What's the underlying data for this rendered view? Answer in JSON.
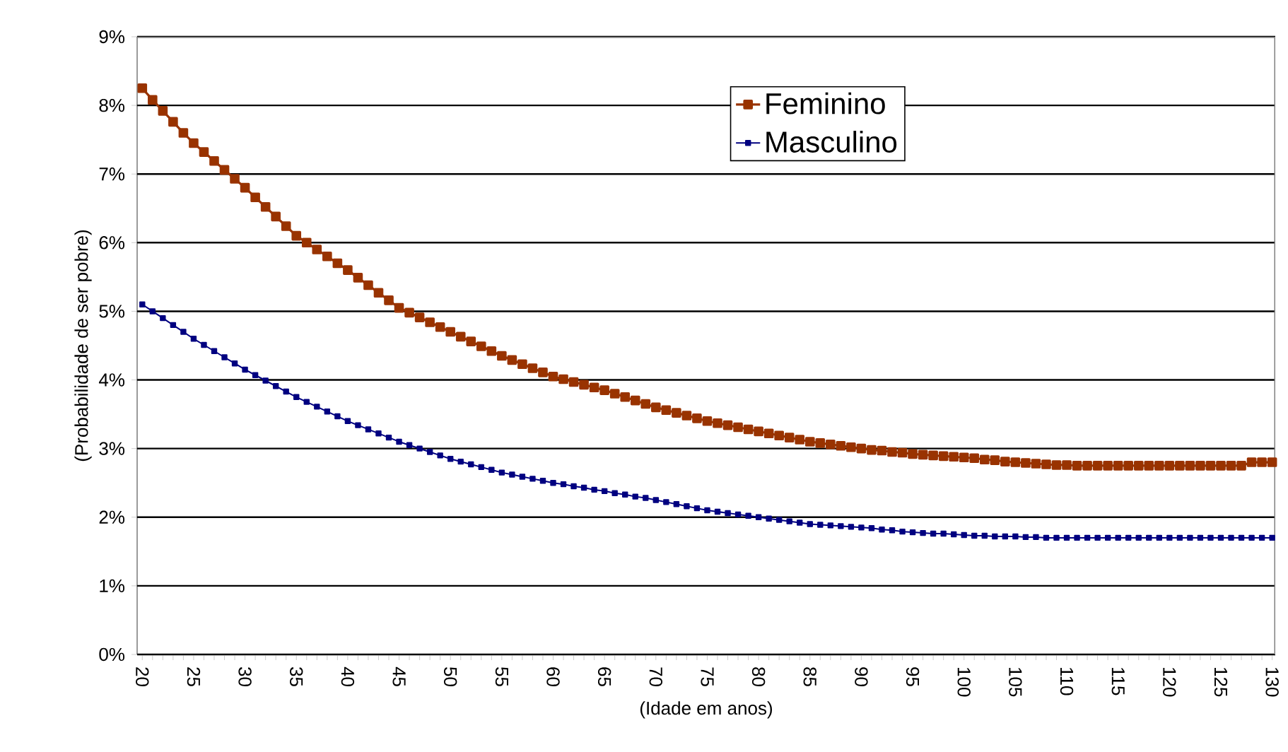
{
  "chart_data": {
    "type": "line",
    "xlabel": "(Idade em anos)",
    "ylabel": "(Probabilidade de ser pobre)",
    "categories": [
      "20",
      null,
      null,
      null,
      null,
      "25",
      null,
      null,
      null,
      null,
      "30",
      null,
      null,
      null,
      null,
      "35",
      null,
      null,
      null,
      null,
      "40",
      null,
      null,
      null,
      null,
      "45",
      null,
      null,
      null,
      null,
      "50",
      null,
      null,
      null,
      null,
      "55",
      null,
      null,
      null,
      null,
      "60",
      null,
      null,
      null,
      null,
      "65",
      null,
      null,
      null,
      null,
      "70",
      null,
      null,
      null,
      null,
      "75",
      null,
      null,
      null,
      null,
      "80",
      null,
      null,
      null,
      null,
      "85",
      null,
      null,
      null,
      null,
      "90",
      null,
      null,
      null,
      null,
      "95",
      null,
      null,
      null,
      null,
      "100",
      null,
      null,
      null,
      null,
      "105",
      null,
      null,
      null,
      null,
      "110",
      null,
      null,
      null,
      null,
      "115",
      null,
      null,
      null,
      null,
      "120",
      null,
      null,
      null,
      null,
      "125",
      null,
      null,
      null,
      null,
      "130"
    ],
    "series": [
      {
        "name": "Feminino",
        "color": "#993300",
        "values": [
          8.25,
          8.08,
          7.92,
          7.76,
          7.6,
          7.45,
          7.32,
          7.19,
          7.06,
          6.93,
          6.8,
          6.66,
          6.52,
          6.38,
          6.24,
          6.1,
          6.0,
          5.9,
          5.8,
          5.7,
          5.6,
          5.49,
          5.38,
          5.27,
          5.16,
          5.05,
          4.98,
          4.91,
          4.84,
          4.77,
          4.7,
          4.63,
          4.56,
          4.49,
          4.42,
          4.35,
          4.29,
          4.23,
          4.17,
          4.11,
          4.05,
          4.01,
          3.97,
          3.93,
          3.89,
          3.85,
          3.8,
          3.75,
          3.7,
          3.65,
          3.6,
          3.56,
          3.52,
          3.48,
          3.44,
          3.4,
          3.37,
          3.34,
          3.31,
          3.28,
          3.25,
          3.22,
          3.19,
          3.16,
          3.13,
          3.1,
          3.08,
          3.06,
          3.04,
          3.02,
          3.0,
          2.98,
          2.97,
          2.95,
          2.94,
          2.92,
          2.91,
          2.9,
          2.89,
          2.88,
          2.87,
          2.86,
          2.84,
          2.83,
          2.81,
          2.8,
          2.79,
          2.78,
          2.77,
          2.76,
          2.76,
          2.75,
          2.75,
          2.75,
          2.75,
          2.75,
          2.75,
          2.75,
          2.75,
          2.75,
          2.75,
          2.75,
          2.75,
          2.75,
          2.75,
          2.75,
          2.75,
          2.75,
          2.8,
          2.8,
          2.8
        ]
      },
      {
        "name": "Masculino",
        "color": "#000080",
        "values": [
          5.1,
          5.0,
          4.9,
          4.8,
          4.7,
          4.6,
          4.51,
          4.42,
          4.33,
          4.24,
          4.15,
          4.07,
          3.99,
          3.91,
          3.83,
          3.75,
          3.68,
          3.61,
          3.54,
          3.47,
          3.4,
          3.34,
          3.28,
          3.22,
          3.16,
          3.1,
          3.05,
          3.0,
          2.95,
          2.9,
          2.85,
          2.81,
          2.77,
          2.73,
          2.69,
          2.65,
          2.62,
          2.59,
          2.56,
          2.53,
          2.5,
          2.48,
          2.45,
          2.43,
          2.4,
          2.38,
          2.35,
          2.33,
          2.3,
          2.28,
          2.25,
          2.22,
          2.19,
          2.16,
          2.13,
          2.1,
          2.08,
          2.06,
          2.04,
          2.02,
          2.0,
          1.98,
          1.96,
          1.94,
          1.92,
          1.9,
          1.89,
          1.88,
          1.87,
          1.86,
          1.85,
          1.84,
          1.82,
          1.81,
          1.79,
          1.78,
          1.77,
          1.76,
          1.76,
          1.75,
          1.74,
          1.73,
          1.73,
          1.72,
          1.72,
          1.72,
          1.71,
          1.71,
          1.7,
          1.7,
          1.7,
          1.7,
          1.7,
          1.7,
          1.7,
          1.7,
          1.7,
          1.7,
          1.7,
          1.7,
          1.7,
          1.7,
          1.7,
          1.7,
          1.7,
          1.7,
          1.7,
          1.7,
          1.7,
          1.7,
          1.7
        ]
      }
    ],
    "ylim": [
      0,
      9
    ],
    "yticks": [
      {
        "value": 0,
        "label": "0%"
      },
      {
        "value": 1,
        "label": "1%"
      },
      {
        "value": 2,
        "label": "2%"
      },
      {
        "value": 3,
        "label": "3%"
      },
      {
        "value": 4,
        "label": "4%"
      },
      {
        "value": 5,
        "label": "5%"
      },
      {
        "value": 6,
        "label": "6%"
      },
      {
        "value": 7,
        "label": "7%"
      },
      {
        "value": 8,
        "label": "8%"
      },
      {
        "value": 9,
        "label": "9%"
      }
    ],
    "grid": "y",
    "legend": "top right",
    "marker": "square",
    "line_style": "solid"
  }
}
